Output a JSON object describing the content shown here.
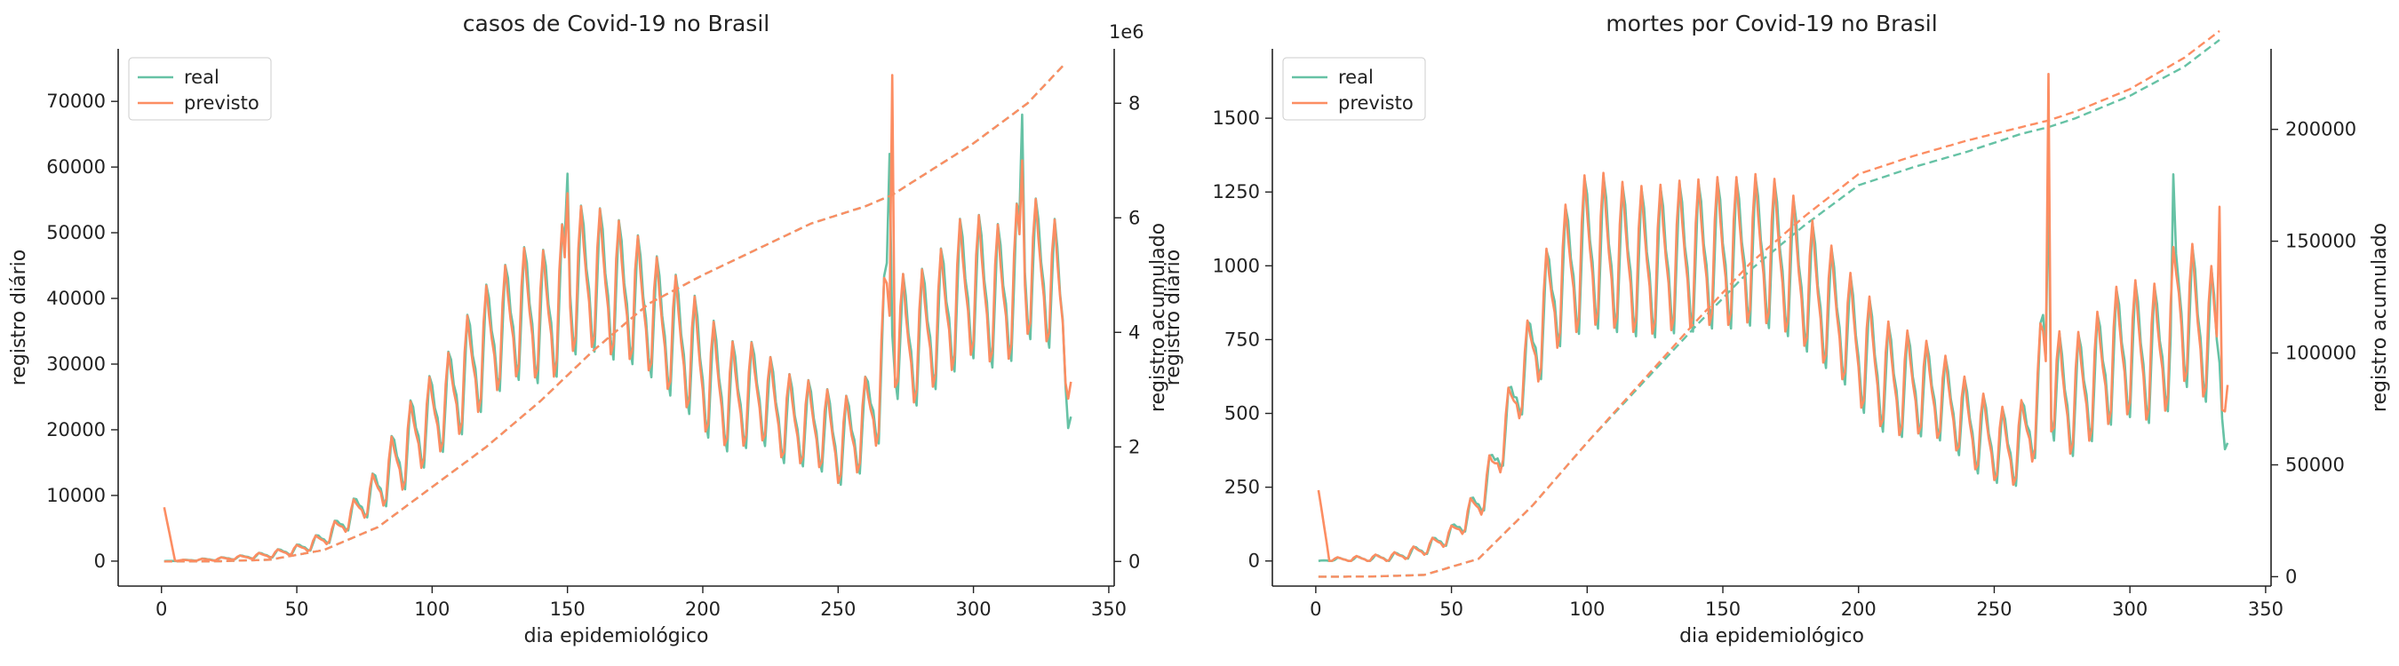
{
  "colors": {
    "real": "#66c2a5",
    "previsto": "#fc8d62",
    "axis": "#222222"
  },
  "chart_data": [
    {
      "id": "casos",
      "type": "line",
      "title": "casos de Covid-19 no Brasil",
      "xlabel": "dia epidemiológico",
      "ylabel": "registro diário",
      "y2label": "registro acumulado",
      "y2_offset_text": "1e6",
      "xlim": [
        -16,
        352
      ],
      "ylim": [
        -3800,
        78000
      ],
      "y2lim": [
        -0.43,
        8.95
      ],
      "xticks": [
        0,
        50,
        100,
        150,
        200,
        250,
        300,
        350
      ],
      "yticks": [
        0,
        10000,
        20000,
        30000,
        40000,
        50000,
        60000,
        70000
      ],
      "y2ticks": [
        0,
        2,
        4,
        6,
        8
      ],
      "legend": {
        "placement": "upper-left",
        "entries": [
          "real",
          "previsto"
        ]
      },
      "grid": false,
      "daily_keypoints_x": [
        1,
        5,
        10,
        20,
        30,
        40,
        50,
        55,
        60,
        65,
        70,
        75,
        80,
        85,
        90,
        95,
        100,
        105,
        110,
        115,
        120,
        125,
        130,
        135,
        140,
        145,
        150,
        155,
        160,
        165,
        170,
        175,
        180,
        185,
        190,
        195,
        200,
        205,
        210,
        215,
        220,
        225,
        230,
        235,
        240,
        245,
        250,
        255,
        260,
        265,
        268,
        270,
        275,
        280,
        285,
        290,
        295,
        300,
        305,
        310,
        315,
        318,
        320,
        325,
        330,
        333,
        336
      ],
      "series": [
        {
          "name": "real",
          "style": "solid",
          "axis": "left",
          "daily_mean": [
            0,
            50,
            150,
            300,
            600,
            1000,
            1800,
            2500,
            3500,
            5000,
            7000,
            9000,
            11000,
            14000,
            17000,
            20000,
            22000,
            24000,
            27000,
            30000,
            33000,
            35000,
            37000,
            38000,
            37000,
            38000,
            42000,
            43000,
            43000,
            42000,
            41000,
            40000,
            38000,
            36000,
            34000,
            32000,
            29000,
            27000,
            25000,
            25000,
            26000,
            24000,
            22000,
            21000,
            21000,
            20000,
            18000,
            19000,
            21000,
            26000,
            38000,
            36000,
            33000,
            34000,
            36000,
            38000,
            41000,
            42000,
            41000,
            40000,
            42000,
            46000,
            45000,
            44000,
            42000,
            38000,
            22000
          ],
          "daily_amplitude": [
            0,
            50,
            100,
            200,
            300,
            500,
            700,
            900,
            1200,
            1500,
            2000,
            2500,
            3500,
            5000,
            6000,
            6500,
            6500,
            7000,
            8000,
            9000,
            9000,
            9000,
            9500,
            10000,
            10000,
            10500,
            11000,
            11000,
            11000,
            11000,
            10500,
            10000,
            9500,
            9500,
            9500,
            9500,
            9500,
            9000,
            8500,
            8000,
            7500,
            7000,
            7000,
            6500,
            6500,
            6500,
            6500,
            6500,
            7000,
            8000,
            10000,
            10000,
            10000,
            10000,
            10000,
            10500,
            11000,
            11000,
            11000,
            11000,
            11000,
            11000,
            11000,
            10500,
            10000,
            9000,
            6000
          ],
          "cumulative_x": [
            1,
            20,
            40,
            60,
            80,
            100,
            120,
            140,
            160,
            180,
            200,
            220,
            240,
            260,
            270,
            280,
            300,
            320,
            333
          ],
          "cumulative_millions": [
            0,
            0.002,
            0.03,
            0.2,
            0.6,
            1.3,
            2.0,
            2.8,
            3.7,
            4.5,
            5.0,
            5.45,
            5.9,
            6.2,
            6.4,
            6.7,
            7.3,
            8.0,
            8.65
          ]
        },
        {
          "name": "previsto",
          "style": "solid",
          "axis": "left",
          "daily_mean": [
            8200,
            100,
            120,
            280,
            580,
            980,
            1750,
            2450,
            3450,
            4900,
            6900,
            8900,
            11000,
            13900,
            16800,
            19800,
            21800,
            23800,
            26800,
            29800,
            32800,
            34800,
            36800,
            37800,
            36800,
            37800,
            41800,
            42800,
            42800,
            41800,
            40800,
            39800,
            37800,
            35800,
            33800,
            31800,
            28800,
            26800,
            24900,
            24900,
            25900,
            23900,
            21900,
            20900,
            20900,
            19900,
            17900,
            18900,
            20900,
            25800,
            37500,
            36500,
            32800,
            33800,
            35800,
            37800,
            40800,
            41800,
            40800,
            39800,
            41800,
            45800,
            44800,
            43800,
            41800,
            39000,
            25000
          ],
          "daily_amplitude": [
            0,
            50,
            100,
            200,
            300,
            480,
            680,
            880,
            1150,
            1450,
            1900,
            2400,
            3300,
            4800,
            5800,
            6300,
            6300,
            6800,
            7800,
            8700,
            8700,
            8800,
            9200,
            9700,
            9700,
            10200,
            10700,
            10700,
            10700,
            10700,
            10200,
            9700,
            9200,
            9200,
            9200,
            9200,
            9200,
            8700,
            8200,
            7700,
            7200,
            6800,
            6800,
            6300,
            6300,
            6300,
            6300,
            6300,
            6800,
            7800,
            9700,
            9700,
            9700,
            9700,
            9700,
            10200,
            10700,
            10700,
            10700,
            10700,
            10700,
            10700,
            10700,
            10200,
            9700,
            8800,
            5000
          ],
          "cumulative_x": [
            1,
            20,
            40,
            60,
            80,
            100,
            120,
            140,
            160,
            180,
            200,
            220,
            240,
            260,
            270,
            280,
            300,
            320,
            333
          ],
          "cumulative_millions": [
            0,
            0.002,
            0.03,
            0.2,
            0.6,
            1.3,
            2.0,
            2.8,
            3.7,
            4.5,
            5.0,
            5.45,
            5.9,
            6.2,
            6.4,
            6.7,
            7.3,
            8.0,
            8.65
          ]
        }
      ],
      "spikes": [
        {
          "series": "previsto",
          "x": 270,
          "y": 74000
        },
        {
          "series": "real",
          "x": 269,
          "y": 62000
        },
        {
          "series": "real",
          "x": 318,
          "y": 68000
        },
        {
          "series": "previsto",
          "x": 318,
          "y": 61000
        },
        {
          "series": "real",
          "x": 150,
          "y": 59000
        },
        {
          "series": "previsto",
          "x": 150,
          "y": 56000
        }
      ]
    },
    {
      "id": "mortes",
      "type": "line",
      "title": "mortes por Covid-19 no Brasil",
      "xlabel": "dia epidemiológico",
      "ylabel": "registro diário",
      "y2label": "registro acumulado",
      "y2_offset_text": "",
      "xlim": [
        -16,
        352
      ],
      "ylim": [
        -85,
        1735
      ],
      "y2lim": [
        -4200,
        236000
      ],
      "xticks": [
        0,
        50,
        100,
        150,
        200,
        250,
        300,
        350
      ],
      "yticks": [
        0,
        250,
        500,
        750,
        1000,
        1250,
        1500
      ],
      "y2ticks": [
        0,
        50000,
        100000,
        150000,
        200000
      ],
      "legend": {
        "placement": "upper-left",
        "entries": [
          "real",
          "previsto"
        ]
      },
      "grid": false,
      "daily_keypoints_x": [
        1,
        5,
        10,
        20,
        30,
        40,
        50,
        55,
        60,
        65,
        70,
        75,
        80,
        85,
        90,
        95,
        100,
        105,
        110,
        115,
        120,
        125,
        130,
        135,
        140,
        145,
        150,
        155,
        160,
        165,
        170,
        175,
        180,
        185,
        190,
        195,
        200,
        205,
        210,
        215,
        220,
        225,
        230,
        235,
        240,
        245,
        250,
        255,
        260,
        265,
        268,
        270,
        275,
        280,
        285,
        290,
        295,
        300,
        305,
        310,
        315,
        318,
        320,
        325,
        330,
        333,
        336
      ],
      "series": [
        {
          "name": "real",
          "style": "solid",
          "axis": "left",
          "daily_mean": [
            0,
            3,
            5,
            8,
            15,
            40,
            90,
            140,
            200,
            300,
            450,
            600,
            720,
            850,
            950,
            1000,
            1050,
            1050,
            1030,
            1020,
            1010,
            1010,
            1020,
            1030,
            1030,
            1040,
            1040,
            1040,
            1050,
            1050,
            1030,
            1000,
            950,
            900,
            850,
            800,
            720,
            680,
            620,
            600,
            600,
            580,
            560,
            520,
            470,
            430,
            400,
            380,
            400,
            500,
            700,
            650,
            550,
            560,
            600,
            650,
            700,
            720,
            700,
            700,
            760,
            900,
            850,
            800,
            760,
            700,
            400
          ],
          "daily_amplitude": [
            0,
            5,
            8,
            10,
            15,
            20,
            30,
            40,
            60,
            80,
            100,
            120,
            150,
            200,
            220,
            240,
            260,
            260,
            250,
            250,
            250,
            250,
            250,
            250,
            250,
            250,
            250,
            250,
            250,
            250,
            250,
            240,
            230,
            220,
            210,
            200,
            200,
            200,
            190,
            180,
            170,
            160,
            150,
            140,
            140,
            140,
            130,
            130,
            140,
            150,
            180,
            200,
            200,
            200,
            200,
            210,
            220,
            230,
            230,
            230,
            240,
            260,
            250,
            240,
            230,
            200,
            80
          ],
          "cumulative_x": [
            1,
            20,
            40,
            60,
            80,
            100,
            120,
            140,
            160,
            180,
            200,
            220,
            240,
            260,
            270,
            280,
            300,
            320,
            333
          ],
          "cumulative": [
            0,
            50,
            800,
            8000,
            32000,
            60000,
            86000,
            112000,
            137000,
            157000,
            175000,
            183000,
            190000,
            198000,
            201000,
            205000,
            215000,
            228000,
            240000
          ]
        },
        {
          "name": "previsto",
          "style": "solid",
          "axis": "left",
          "daily_mean": [
            240,
            5,
            6,
            9,
            15,
            40,
            88,
            138,
            198,
            298,
            448,
            598,
            718,
            848,
            948,
            998,
            1048,
            1048,
            1028,
            1018,
            1008,
            1008,
            1018,
            1028,
            1028,
            1038,
            1038,
            1038,
            1048,
            1048,
            1028,
            998,
            948,
            898,
            848,
            798,
            718,
            678,
            618,
            598,
            598,
            578,
            558,
            518,
            468,
            428,
            398,
            378,
            398,
            498,
            690,
            650,
            548,
            558,
            598,
            648,
            698,
            718,
            698,
            698,
            758,
            898,
            848,
            798,
            758,
            750,
            550
          ],
          "daily_amplitude": [
            0,
            5,
            8,
            10,
            15,
            20,
            30,
            40,
            60,
            80,
            100,
            120,
            150,
            200,
            220,
            240,
            260,
            260,
            250,
            250,
            250,
            250,
            250,
            250,
            250,
            250,
            250,
            250,
            250,
            250,
            250,
            240,
            230,
            220,
            210,
            200,
            200,
            200,
            190,
            180,
            170,
            160,
            150,
            140,
            140,
            140,
            130,
            130,
            140,
            150,
            180,
            200,
            200,
            200,
            200,
            210,
            220,
            230,
            230,
            230,
            240,
            260,
            250,
            240,
            230,
            220,
            100
          ],
          "cumulative_x": [
            1,
            20,
            40,
            60,
            80,
            100,
            120,
            140,
            160,
            180,
            200,
            220,
            240,
            260,
            270,
            280,
            300,
            320,
            333
          ],
          "cumulative": [
            0,
            50,
            800,
            8000,
            32000,
            60000,
            87000,
            114000,
            140000,
            161000,
            180000,
            188000,
            195000,
            201000,
            204000,
            208000,
            218000,
            232000,
            244000
          ]
        }
      ],
      "spikes": [
        {
          "series": "previsto",
          "x": 270,
          "y": 1650
        },
        {
          "series": "real",
          "x": 270,
          "y": 1300
        },
        {
          "series": "real",
          "x": 316,
          "y": 1310
        },
        {
          "series": "previsto",
          "x": 333,
          "y": 1200
        }
      ]
    }
  ]
}
